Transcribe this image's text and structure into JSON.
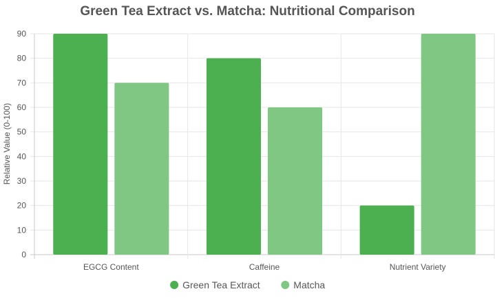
{
  "chart_data": {
    "type": "bar",
    "title": "Green Tea Extract vs. Matcha: Nutritional Comparison",
    "xlabel": "",
    "ylabel": "Relative Value (0-100)",
    "categories": [
      "EGCG Content",
      "Caffeine",
      "Nutrient Variety"
    ],
    "series": [
      {
        "name": "Green Tea Extract",
        "values": [
          90,
          80,
          20
        ],
        "color": "#4caf50"
      },
      {
        "name": "Matcha",
        "values": [
          70,
          60,
          90
        ],
        "color": "#81c784"
      }
    ],
    "ylim": [
      0,
      90
    ],
    "yticks": [
      0,
      10,
      20,
      30,
      40,
      50,
      60,
      70,
      80,
      90
    ],
    "grid": true,
    "legend_position": "bottom"
  }
}
